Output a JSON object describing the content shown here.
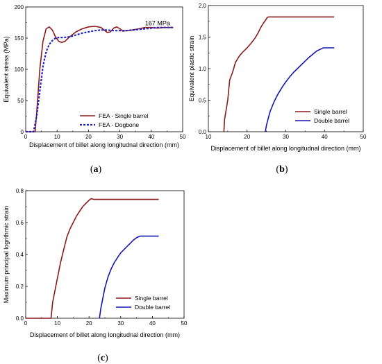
{
  "chart_data": [
    {
      "id": "a",
      "panel_label": "a",
      "type": "line",
      "xlabel": "Displacement of billet along longitudnal direction (mm)",
      "ylabel": "Equivalent stress (MPa)",
      "xlim": [
        0,
        50
      ],
      "ylim": [
        0,
        200
      ],
      "xticks": [
        0,
        10,
        20,
        30,
        40,
        50
      ],
      "yticks": [
        0,
        50,
        100,
        150,
        200
      ],
      "annotation": "167 MPa",
      "annotation_at": [
        42,
        174
      ],
      "legend": "bottom-left",
      "grid": false,
      "series": [
        {
          "name": "FEA - Single barrel",
          "color": "#8B1A1A",
          "dash": false,
          "x": [
            0,
            3.0,
            3.5,
            4.5,
            5.5,
            6.5,
            7.5,
            8.5,
            9.5,
            10.5,
            11.5,
            12.5,
            14,
            16,
            18,
            20,
            22,
            24,
            25,
            26,
            27,
            28,
            29,
            30,
            31,
            32,
            34,
            36,
            38,
            40,
            42,
            44,
            46,
            47
          ],
          "y": [
            0,
            0,
            30,
            100,
            145,
            165,
            168,
            163,
            152,
            145,
            143,
            145,
            152,
            160,
            165,
            168,
            169,
            167,
            163,
            159,
            160,
            166,
            168,
            165,
            161,
            162,
            163,
            165,
            167,
            167,
            166,
            167,
            167,
            167
          ]
        },
        {
          "name": "FEA - Dogbone",
          "color": "#2222CC",
          "dash": true,
          "x": [
            0,
            2.5,
            3.5,
            4.5,
            5.5,
            6.5,
            7.5,
            8.5,
            9.5,
            10.5,
            12,
            14,
            16,
            18,
            20,
            22,
            24,
            26,
            28,
            30,
            32,
            34,
            36,
            38,
            40,
            42,
            44,
            46,
            47
          ],
          "y": [
            0,
            0,
            25,
            65,
            105,
            128,
            140,
            146,
            150,
            151,
            151,
            152,
            155,
            158,
            160,
            162,
            163,
            163,
            162,
            162,
            162,
            163,
            164,
            165,
            166,
            167,
            167,
            167,
            167
          ]
        }
      ]
    },
    {
      "id": "b",
      "panel_label": "b",
      "type": "line",
      "xlabel": "Displacement of billet along longitudnal direction (mm)",
      "ylabel": "Equivalent plastic strain",
      "xlim": [
        10,
        50
      ],
      "ylim": [
        0,
        2.0
      ],
      "xticks": [
        10,
        20,
        30,
        40,
        50
      ],
      "yticks": [
        0.0,
        0.5,
        1.0,
        1.5,
        2.0
      ],
      "legend": "bottom-right",
      "grid": false,
      "series": [
        {
          "name": "Single barrel",
          "color": "#8B1A1A",
          "dash": false,
          "x": [
            14.0,
            14.2,
            15.0,
            15.5,
            16.3,
            17.0,
            18.0,
            19.0,
            20.0,
            21.0,
            22.0,
            22.8,
            23.5,
            24.2,
            24.8,
            25.2,
            25.5,
            27,
            30,
            35,
            40,
            42.5
          ],
          "y": [
            0.0,
            0.2,
            0.5,
            0.82,
            0.95,
            1.1,
            1.2,
            1.27,
            1.33,
            1.4,
            1.48,
            1.56,
            1.65,
            1.72,
            1.77,
            1.81,
            1.82,
            1.82,
            1.82,
            1.82,
            1.82,
            1.82
          ]
        },
        {
          "name": "Double barrel",
          "color": "#1414B4",
          "dash": false,
          "x": [
            24.7,
            25.0,
            25.5,
            26.0,
            27.0,
            28.0,
            29.0,
            30.0,
            31.0,
            32.0,
            33.0,
            34.0,
            35.0,
            36.0,
            37.0,
            38.0,
            39.0,
            39.7,
            40.5,
            42.5
          ],
          "y": [
            0.0,
            0.1,
            0.22,
            0.33,
            0.48,
            0.6,
            0.7,
            0.79,
            0.87,
            0.94,
            1.0,
            1.06,
            1.12,
            1.18,
            1.23,
            1.28,
            1.31,
            1.33,
            1.33,
            1.33
          ]
        }
      ]
    },
    {
      "id": "c",
      "panel_label": "c",
      "type": "line",
      "xlabel": "Displacement of billet along longitudnal direction (mm)",
      "ylabel": "Maximum principal logrithmic strain",
      "xlim": [
        0,
        50
      ],
      "ylim": [
        0,
        0.8
      ],
      "xticks": [
        0,
        10,
        20,
        30,
        40,
        50
      ],
      "yticks": [
        0.0,
        0.2,
        0.4,
        0.6,
        0.8
      ],
      "legend": "bottom-right",
      "grid": false,
      "series": [
        {
          "name": "Single barrel",
          "color": "#8B1A1A",
          "dash": false,
          "x": [
            0,
            8.0,
            8.5,
            10.0,
            11.0,
            12.0,
            13.0,
            14.0,
            15.0,
            16.0,
            17.0,
            18.0,
            19.0,
            20.0,
            20.7,
            21.5,
            25,
            30,
            35,
            40,
            42
          ],
          "y": [
            0,
            0,
            0.1,
            0.25,
            0.35,
            0.43,
            0.51,
            0.56,
            0.6,
            0.64,
            0.67,
            0.7,
            0.72,
            0.74,
            0.75,
            0.745,
            0.745,
            0.745,
            0.745,
            0.745,
            0.745
          ]
        },
        {
          "name": "Double barrel",
          "color": "#1414B4",
          "dash": false,
          "x": [
            23.3,
            23.7,
            24.5,
            25.0,
            26.0,
            27.0,
            28.0,
            29.0,
            30.0,
            31.0,
            32.0,
            33.0,
            34.0,
            35.0,
            36.0,
            37.0,
            39.0,
            42.0
          ],
          "y": [
            0.0,
            0.06,
            0.14,
            0.19,
            0.26,
            0.31,
            0.35,
            0.38,
            0.41,
            0.43,
            0.45,
            0.47,
            0.49,
            0.505,
            0.515,
            0.515,
            0.515,
            0.515
          ]
        }
      ]
    }
  ]
}
